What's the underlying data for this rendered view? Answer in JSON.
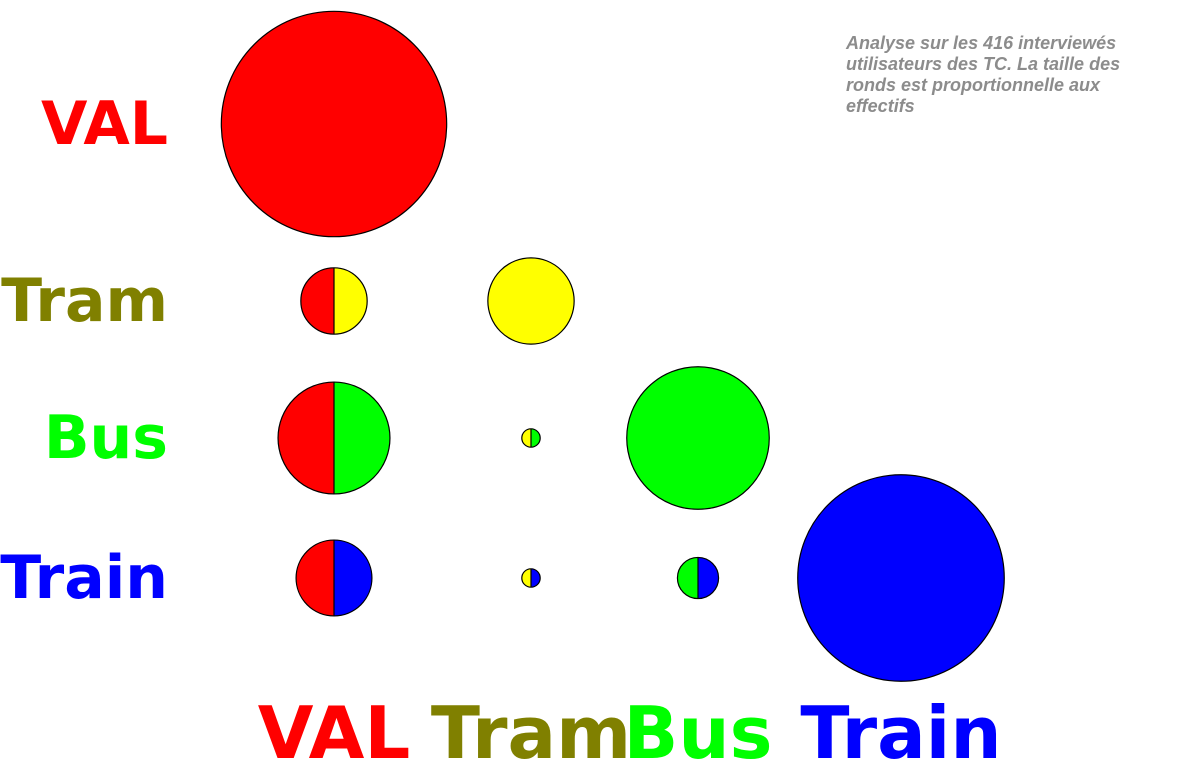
{
  "note": "Analyse sur les 416 interviewés utilisateurs des TC. La taille des ronds est proportionnelle aux effectifs",
  "chart_data": {
    "type": "bubble-matrix",
    "title": "",
    "size_encoding": "circle area proportional to counts",
    "modes": [
      {
        "name": "VAL",
        "color": "#ff0000",
        "label_color": "#ff0000"
      },
      {
        "name": "Tram",
        "color": "#ffff00",
        "label_color": "#808000"
      },
      {
        "name": "Bus",
        "color": "#00ff00",
        "label_color": "#00ff00"
      },
      {
        "name": "Train",
        "color": "#0000ff",
        "label_color": "#0000ff"
      }
    ],
    "row_labels": [
      "VAL",
      "Tram",
      "Bus",
      "Train"
    ],
    "column_labels": [
      "VAL",
      "Tram",
      "Bus",
      "Train"
    ],
    "cells": [
      {
        "row": "VAL",
        "column": "VAL",
        "value": 150
      },
      {
        "row": "Tram",
        "column": "VAL",
        "value": 13
      },
      {
        "row": "Tram",
        "column": "Tram",
        "value": 22
      },
      {
        "row": "Bus",
        "column": "VAL",
        "value": 37
      },
      {
        "row": "Bus",
        "column": "Tram",
        "value": 1
      },
      {
        "row": "Bus",
        "column": "Bus",
        "value": 60
      },
      {
        "row": "Train",
        "column": "VAL",
        "value": 17
      },
      {
        "row": "Train",
        "column": "Tram",
        "value": 1
      },
      {
        "row": "Train",
        "column": "Bus",
        "value": 5
      },
      {
        "row": "Train",
        "column": "Train",
        "value": 126
      }
    ]
  }
}
